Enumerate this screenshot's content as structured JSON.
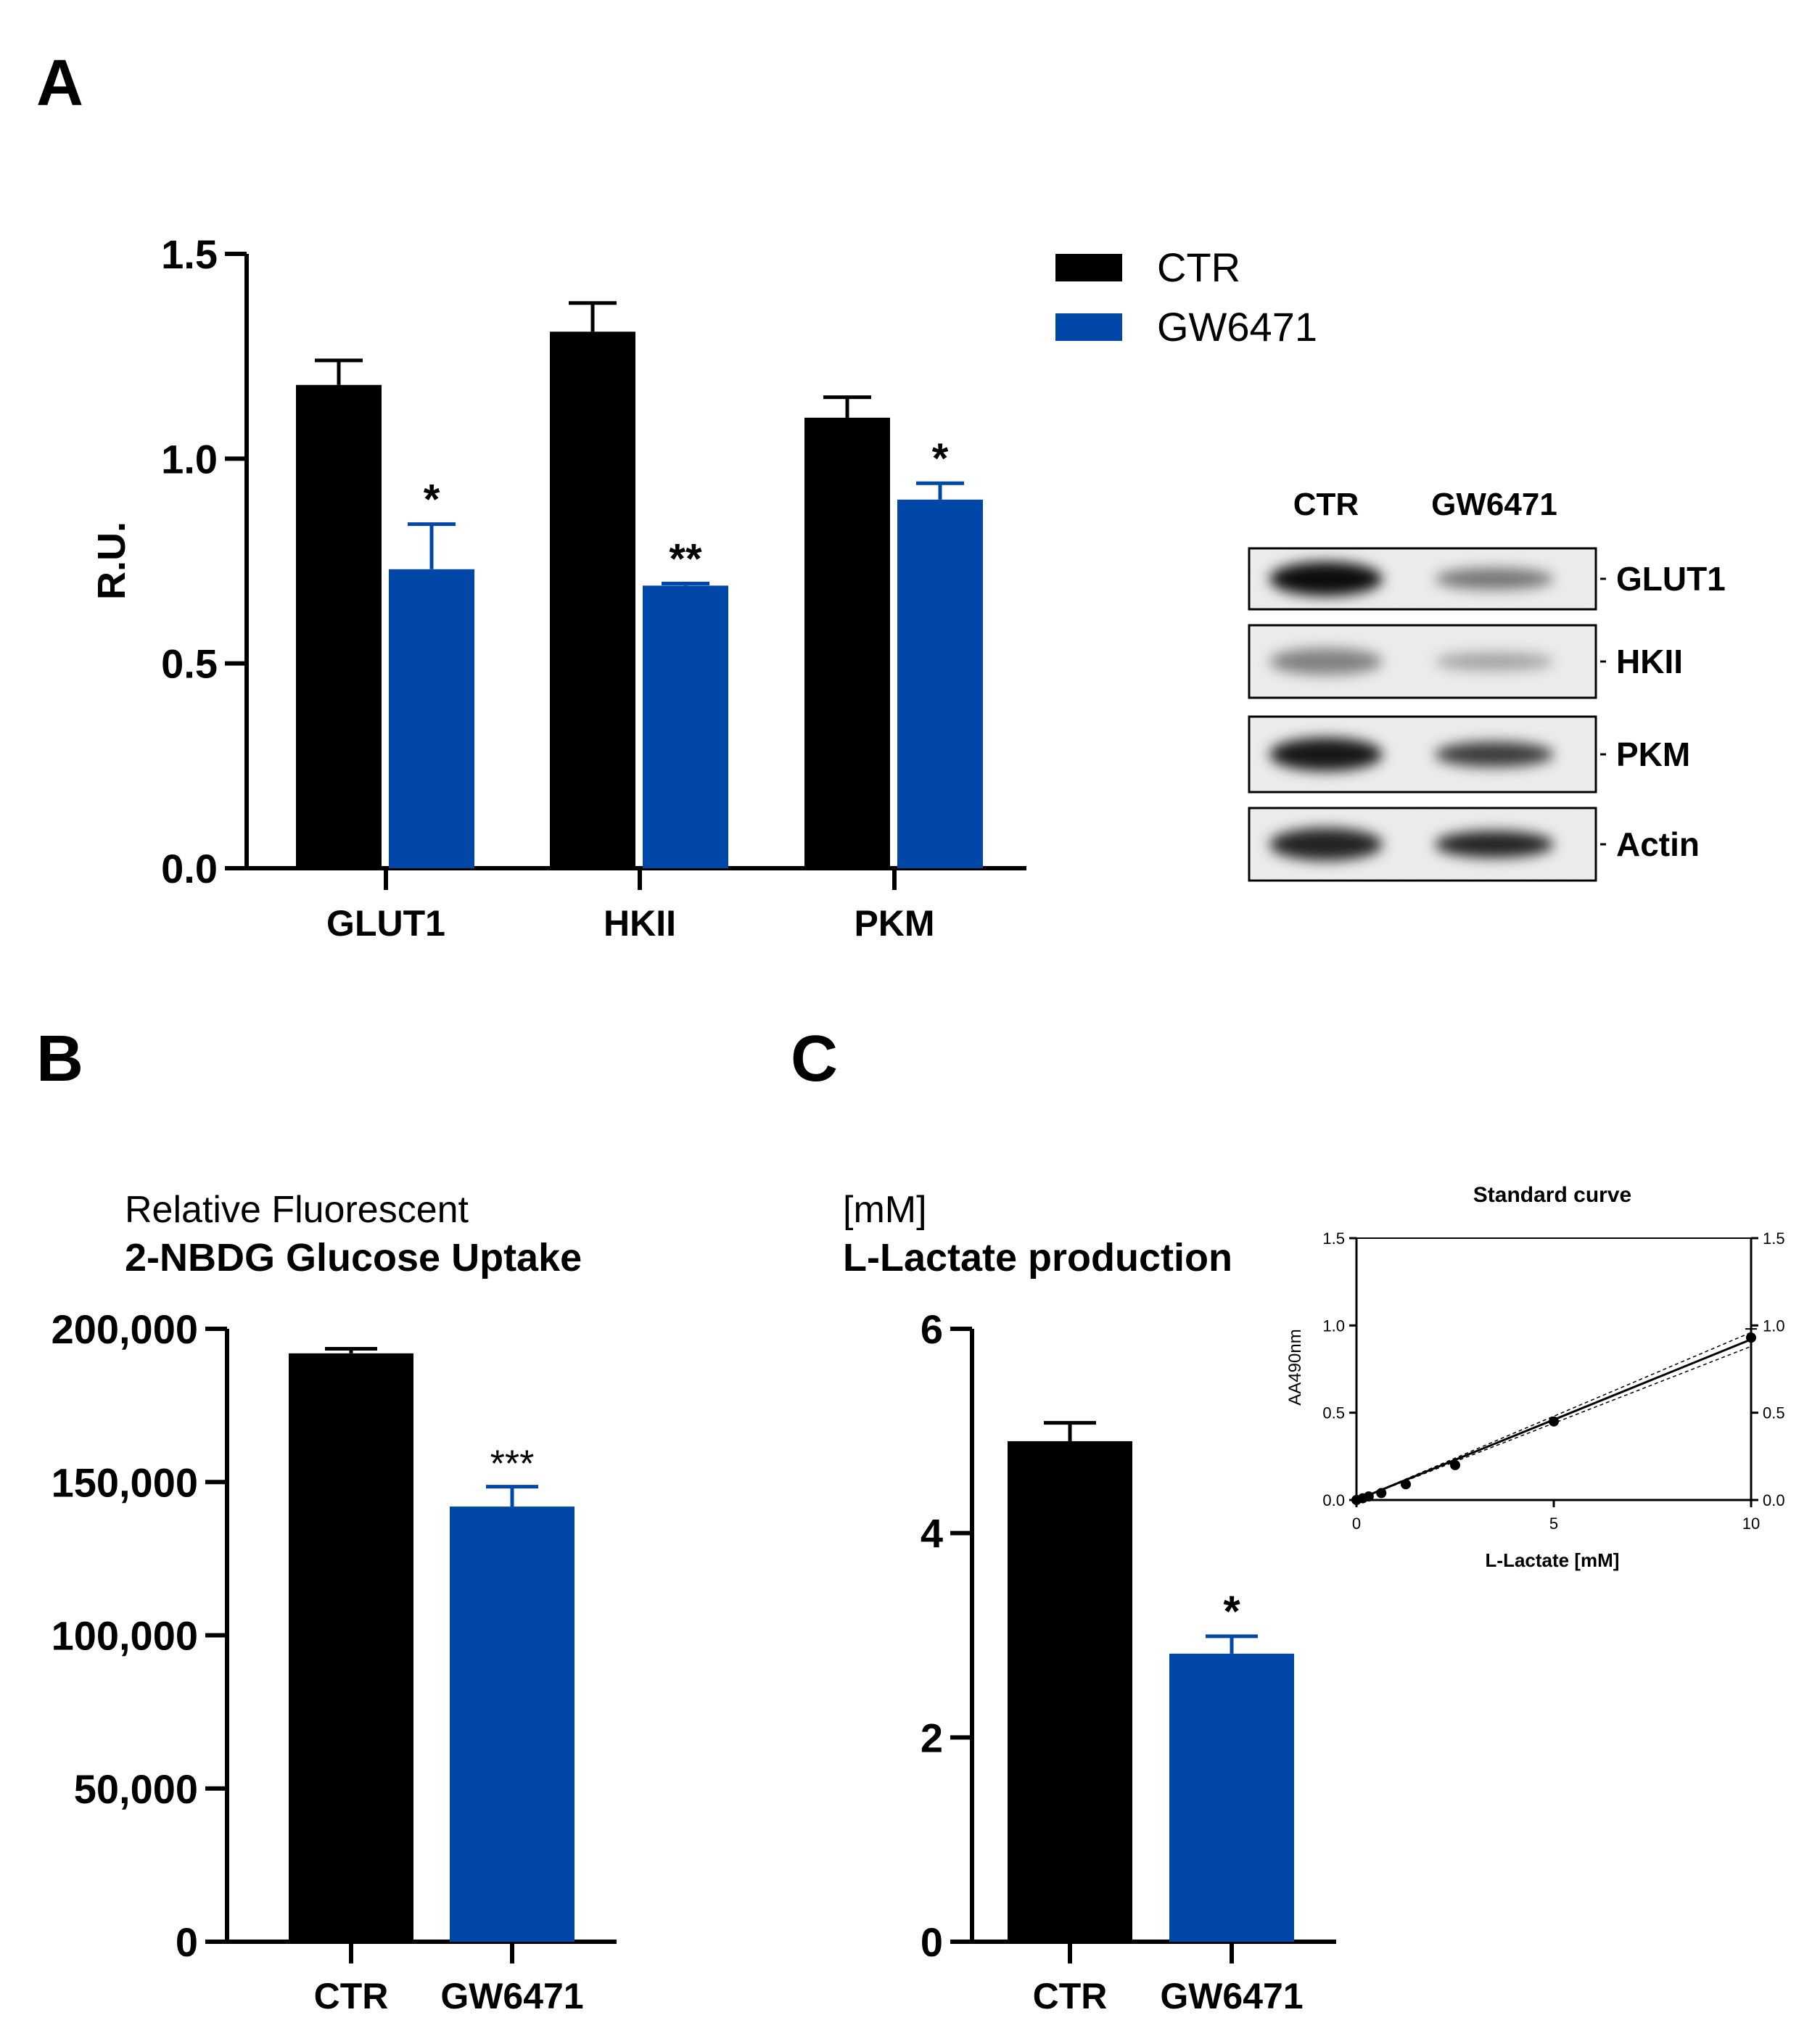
{
  "colors": {
    "ctr": "#000000",
    "gw": "#0047A8",
    "axis": "#000000"
  },
  "panel_labels": {
    "a": "A",
    "b": "B",
    "c": "C"
  },
  "legend": {
    "ctr": "CTR",
    "gw": "GW6471"
  },
  "blot": {
    "headers": [
      "CTR",
      "GW6471"
    ],
    "rows": [
      "GLUT1",
      "HKII",
      "PKM",
      "Actin"
    ],
    "intensity_ctr": [
      0.95,
      0.45,
      0.9,
      0.85
    ],
    "intensity_gw": [
      0.5,
      0.3,
      0.75,
      0.85
    ]
  },
  "inset": {
    "title": "Standard curve",
    "xlabel": "L-Lactate [mM]",
    "ylabel": "AA490nm",
    "xticks": [
      "0",
      "5",
      "10"
    ],
    "yticks": [
      "0.0",
      "0.5",
      "1.0",
      "1.5"
    ],
    "yticks_right": [
      "0.0",
      "0.5",
      "1.0",
      "1.5"
    ]
  },
  "chart_data": [
    {
      "id": "A",
      "type": "bar",
      "title": "",
      "xlabel": "",
      "ylabel": "R.U.",
      "ylim": [
        0,
        1.5
      ],
      "yticks": [
        0,
        0.5,
        1.0,
        1.5
      ],
      "ytick_labels": [
        "0.0",
        "0.5",
        "1.0",
        "1.5"
      ],
      "categories": [
        "GLUT1",
        "HKII",
        "PKM"
      ],
      "series": [
        {
          "name": "CTR",
          "values": [
            1.18,
            1.31,
            1.1
          ],
          "errors": [
            0.06,
            0.07,
            0.05
          ]
        },
        {
          "name": "GW6471",
          "values": [
            0.73,
            0.69,
            0.9
          ],
          "errors": [
            0.11,
            0.005,
            0.04
          ]
        }
      ],
      "annotations": [
        "",
        "",
        "",
        "*",
        "**",
        "*"
      ],
      "legend_position": "top-right"
    },
    {
      "id": "B",
      "type": "bar",
      "subtitle": "Relative Fluorescent",
      "title": "2-NBDG Glucose Uptake",
      "ylim": [
        0,
        200000
      ],
      "yticks": [
        0,
        50000,
        100000,
        150000,
        200000
      ],
      "ytick_labels": [
        "0",
        "50,000",
        "100,000",
        "150,000",
        "200,000"
      ],
      "categories": [
        "CTR",
        "GW6471"
      ],
      "values": [
        192000,
        142000
      ],
      "errors": [
        1500,
        6500
      ],
      "annotations": [
        "",
        "***"
      ]
    },
    {
      "id": "C",
      "type": "bar",
      "subtitle": "[mM]",
      "title": "L-Lactate production",
      "ylim": [
        0,
        6
      ],
      "yticks": [
        0,
        2,
        4,
        6
      ],
      "ytick_labels": [
        "0",
        "2",
        "4",
        "6"
      ],
      "categories": [
        "CTR",
        "GW6471"
      ],
      "values": [
        4.9,
        2.82
      ],
      "errors": [
        0.18,
        0.17
      ],
      "annotations": [
        "",
        "*"
      ]
    },
    {
      "id": "C-inset",
      "type": "scatter",
      "title": "Standard curve",
      "xlabel": "L-Lactate [mM]",
      "ylabel": "AA490nm",
      "xlim": [
        0,
        10
      ],
      "ylim": [
        0,
        1.5
      ],
      "x": [
        0,
        0.16,
        0.31,
        0.63,
        1.25,
        2.5,
        5,
        10
      ],
      "y": [
        0.0,
        0.01,
        0.02,
        0.04,
        0.09,
        0.2,
        0.45,
        0.93
      ],
      "fit": {
        "slope": 0.092,
        "intercept": 0.0
      }
    }
  ]
}
